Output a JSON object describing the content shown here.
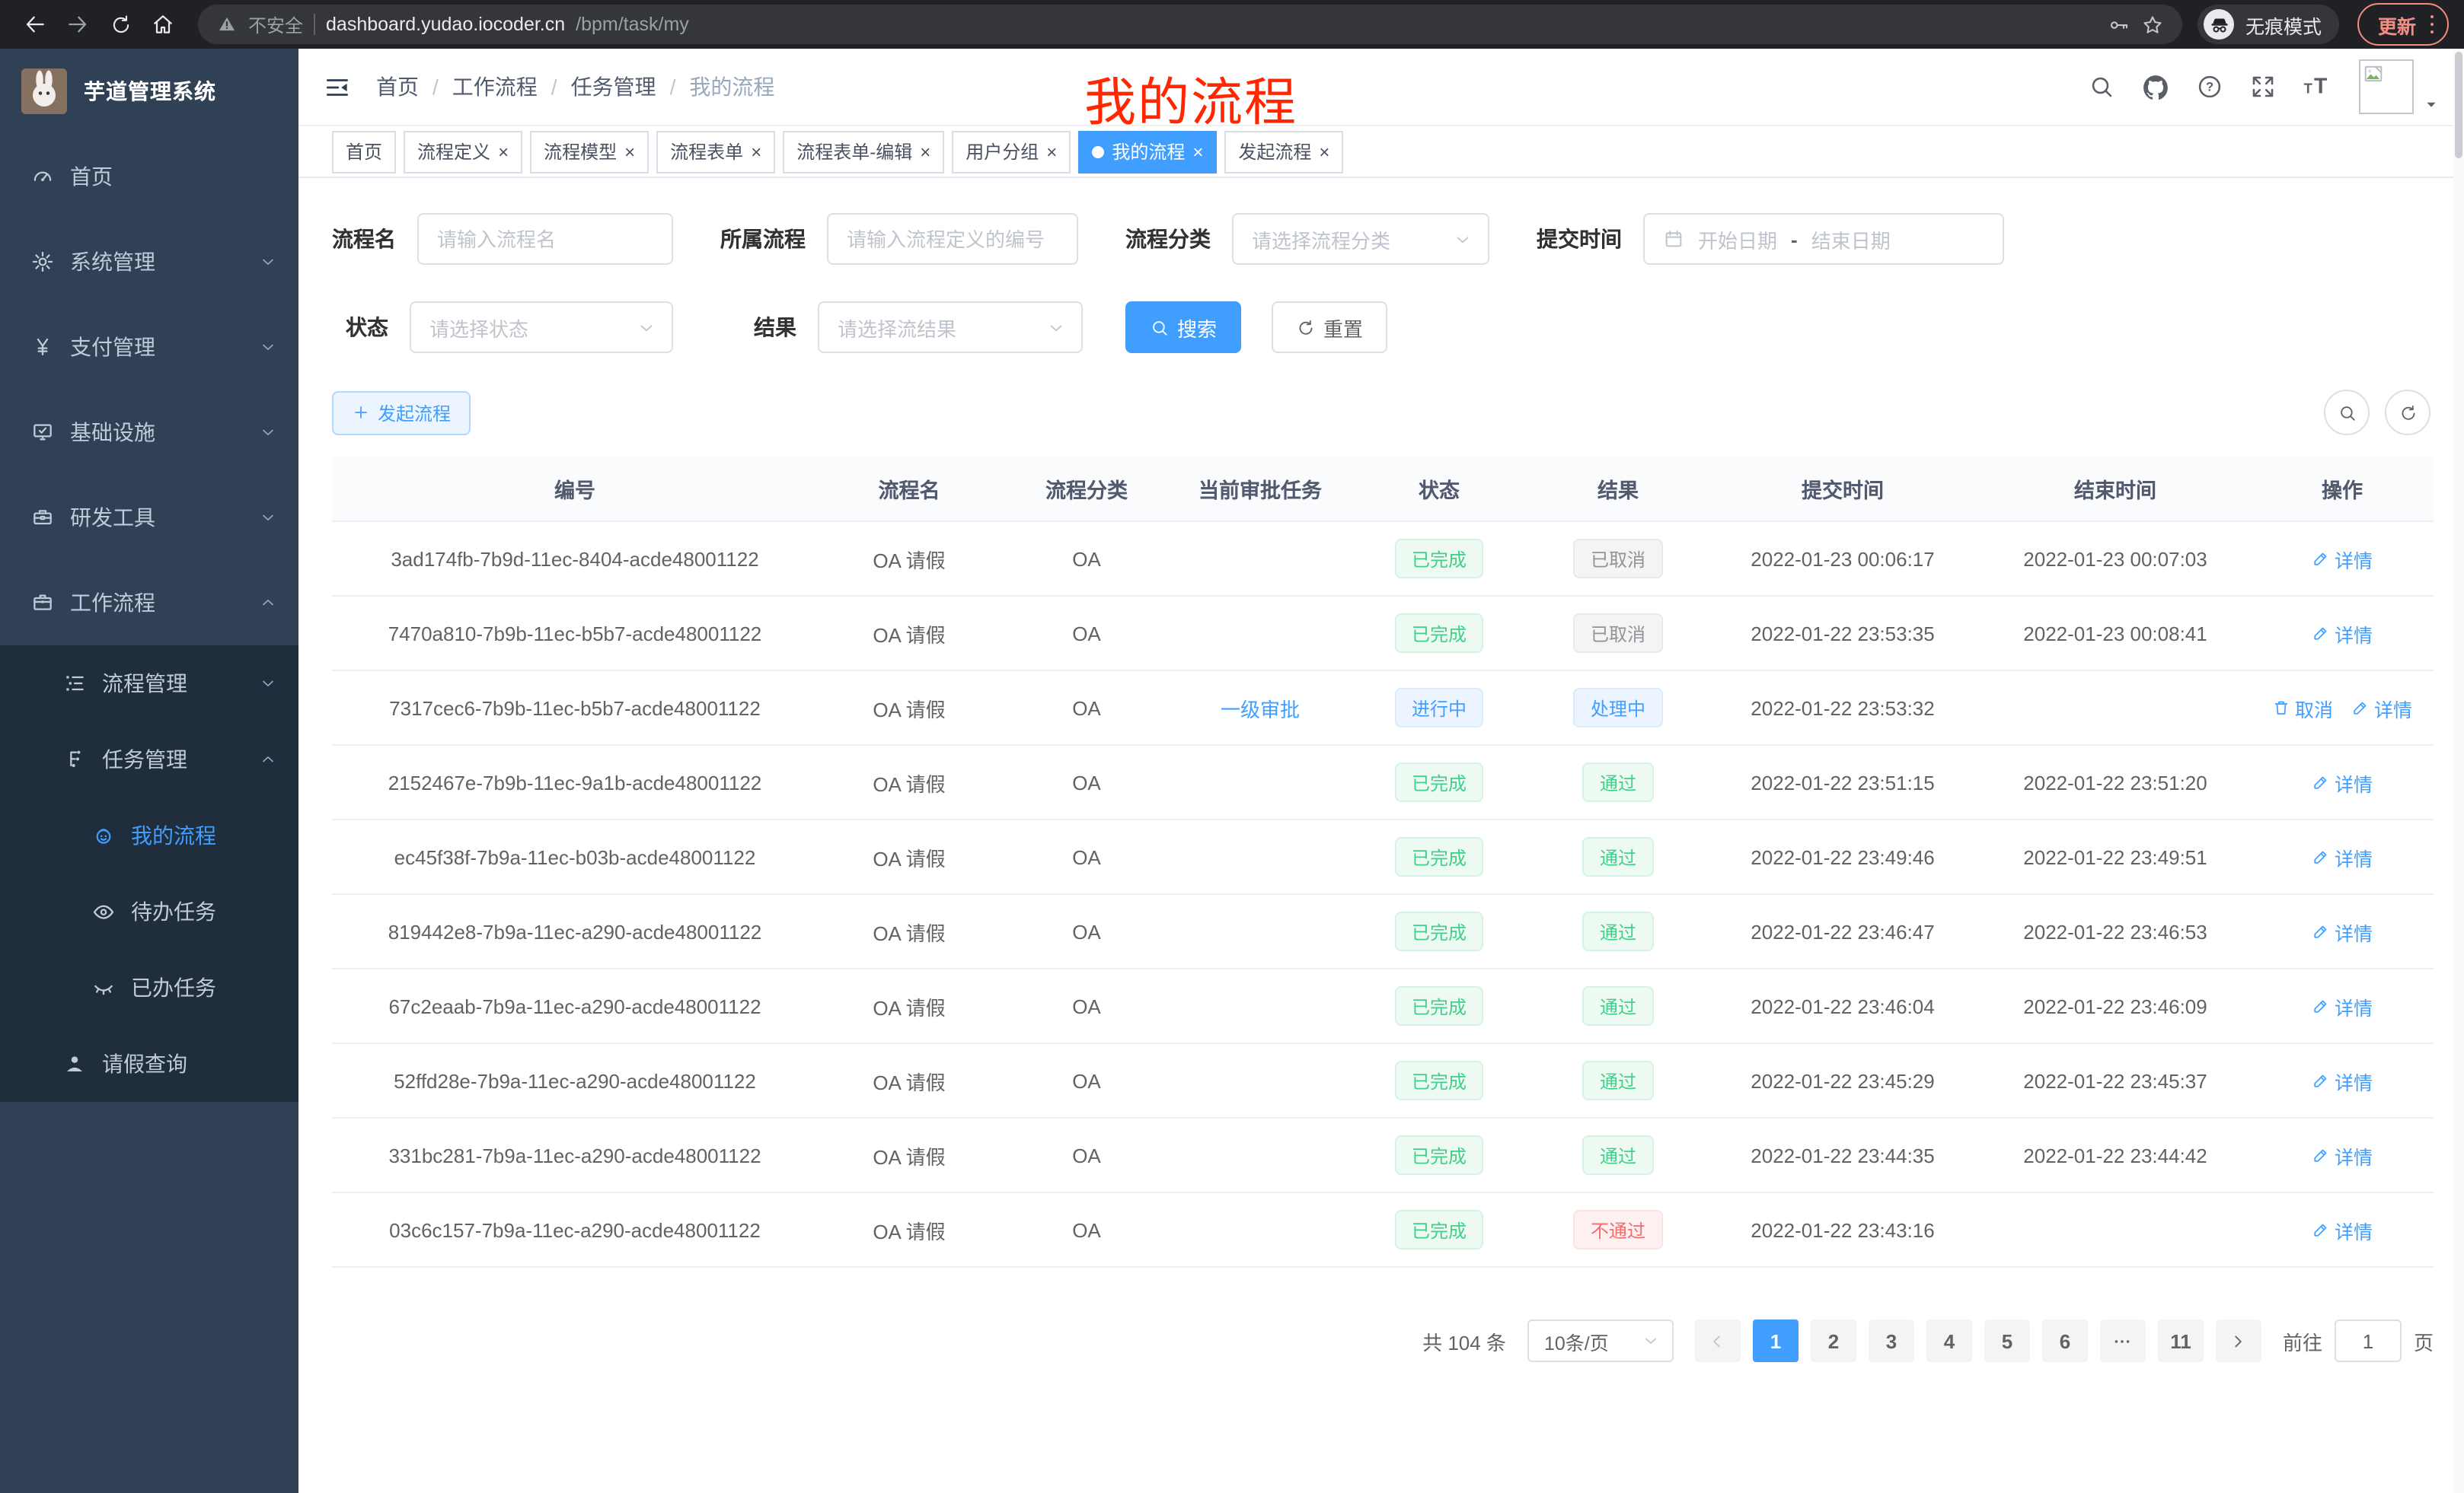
{
  "browser": {
    "insecure_label": "不安全",
    "url_host": "dashboard.yudao.iocoder.cn",
    "url_path": "/bpm/task/my",
    "incognito_label": "无痕模式",
    "update_label": "更新"
  },
  "sidebar": {
    "title": "芋道管理系统",
    "items": [
      {
        "label": "首页",
        "icon": "gauge",
        "level": 1,
        "chevron": "",
        "grouped": false,
        "active": false
      },
      {
        "label": "系统管理",
        "icon": "gear",
        "level": 1,
        "chevron": "down",
        "grouped": false,
        "active": false
      },
      {
        "label": "支付管理",
        "icon": "yen",
        "level": 1,
        "chevron": "down",
        "grouped": false,
        "active": false
      },
      {
        "label": "基础设施",
        "icon": "monitor",
        "level": 1,
        "chevron": "down",
        "grouped": false,
        "active": false
      },
      {
        "label": "研发工具",
        "icon": "toolbox",
        "level": 1,
        "chevron": "down",
        "grouped": false,
        "active": false
      },
      {
        "label": "工作流程",
        "icon": "briefcase",
        "level": 1,
        "chevron": "up",
        "grouped": false,
        "active": false
      },
      {
        "label": "流程管理",
        "icon": "list",
        "level": 2,
        "chevron": "down",
        "grouped": true,
        "active": false
      },
      {
        "label": "任务管理",
        "icon": "flow",
        "level": 2,
        "chevron": "up",
        "grouped": true,
        "active": false
      },
      {
        "label": "我的流程",
        "icon": "robot",
        "level": 3,
        "chevron": "",
        "grouped": true,
        "active": true
      },
      {
        "label": "待办任务",
        "icon": "eye",
        "level": 3,
        "chevron": "",
        "grouped": true,
        "active": false
      },
      {
        "label": "已办任务",
        "icon": "eyeclosed",
        "level": 3,
        "chevron": "",
        "grouped": true,
        "active": false
      },
      {
        "label": "请假查询",
        "icon": "user",
        "level": 2,
        "chevron": "",
        "grouped": true,
        "active": false
      }
    ]
  },
  "header": {
    "breadcrumb": [
      "首页",
      "工作流程",
      "任务管理",
      "我的流程"
    ],
    "annotation_title": "我的流程"
  },
  "tabs": [
    {
      "label": "首页",
      "closable": false,
      "active": false
    },
    {
      "label": "流程定义",
      "closable": true,
      "active": false
    },
    {
      "label": "流程模型",
      "closable": true,
      "active": false
    },
    {
      "label": "流程表单",
      "closable": true,
      "active": false
    },
    {
      "label": "流程表单-编辑",
      "closable": true,
      "active": false
    },
    {
      "label": "用户分组",
      "closable": true,
      "active": false
    },
    {
      "label": "我的流程",
      "closable": true,
      "active": true
    },
    {
      "label": "发起流程",
      "closable": true,
      "active": false
    }
  ],
  "filters": {
    "process_name": {
      "label": "流程名",
      "placeholder": "请输入流程名"
    },
    "parent_process": {
      "label": "所属流程",
      "placeholder": "请输入流程定义的编号"
    },
    "category": {
      "label": "流程分类",
      "placeholder": "请选择流程分类"
    },
    "submit_time": {
      "label": "提交时间",
      "start_placeholder": "开始日期",
      "separator": "-",
      "end_placeholder": "结束日期"
    },
    "status": {
      "label": "状态",
      "placeholder": "请选择状态"
    },
    "result": {
      "label": "结果",
      "placeholder": "请选择流结果"
    },
    "search_label": "搜索",
    "reset_label": "重置"
  },
  "toolbar": {
    "start_process_label": "发起流程"
  },
  "table": {
    "columns": [
      "编号",
      "流程名",
      "流程分类",
      "当前审批任务",
      "状态",
      "结果",
      "提交时间",
      "结束时间",
      "操作"
    ],
    "rows": [
      {
        "id": "3ad174fb-7b9d-11ec-8404-acde48001122",
        "name": "OA 请假",
        "category": "OA",
        "current_task": "",
        "status": {
          "text": "已完成",
          "type": "success"
        },
        "result": {
          "text": "已取消",
          "type": "info"
        },
        "submit_time": "2022-01-23 00:06:17",
        "end_time": "2022-01-23 00:07:03",
        "actions": [
          {
            "label": "详情",
            "icon": "edit"
          }
        ]
      },
      {
        "id": "7470a810-7b9b-11ec-b5b7-acde48001122",
        "name": "OA 请假",
        "category": "OA",
        "current_task": "",
        "status": {
          "text": "已完成",
          "type": "success"
        },
        "result": {
          "text": "已取消",
          "type": "info"
        },
        "submit_time": "2022-01-22 23:53:35",
        "end_time": "2022-01-23 00:08:41",
        "actions": [
          {
            "label": "详情",
            "icon": "edit"
          }
        ]
      },
      {
        "id": "7317cec6-7b9b-11ec-b5b7-acde48001122",
        "name": "OA 请假",
        "category": "OA",
        "current_task": "一级审批",
        "status": {
          "text": "进行中",
          "type": "primary"
        },
        "result": {
          "text": "处理中",
          "type": "primary"
        },
        "submit_time": "2022-01-22 23:53:32",
        "end_time": "",
        "actions": [
          {
            "label": "取消",
            "icon": "trash"
          },
          {
            "label": "详情",
            "icon": "edit"
          }
        ]
      },
      {
        "id": "2152467e-7b9b-11ec-9a1b-acde48001122",
        "name": "OA 请假",
        "category": "OA",
        "current_task": "",
        "status": {
          "text": "已完成",
          "type": "success"
        },
        "result": {
          "text": "通过",
          "type": "success"
        },
        "submit_time": "2022-01-22 23:51:15",
        "end_time": "2022-01-22 23:51:20",
        "actions": [
          {
            "label": "详情",
            "icon": "edit"
          }
        ]
      },
      {
        "id": "ec45f38f-7b9a-11ec-b03b-acde48001122",
        "name": "OA 请假",
        "category": "OA",
        "current_task": "",
        "status": {
          "text": "已完成",
          "type": "success"
        },
        "result": {
          "text": "通过",
          "type": "success"
        },
        "submit_time": "2022-01-22 23:49:46",
        "end_time": "2022-01-22 23:49:51",
        "actions": [
          {
            "label": "详情",
            "icon": "edit"
          }
        ]
      },
      {
        "id": "819442e8-7b9a-11ec-a290-acde48001122",
        "name": "OA 请假",
        "category": "OA",
        "current_task": "",
        "status": {
          "text": "已完成",
          "type": "success"
        },
        "result": {
          "text": "通过",
          "type": "success"
        },
        "submit_time": "2022-01-22 23:46:47",
        "end_time": "2022-01-22 23:46:53",
        "actions": [
          {
            "label": "详情",
            "icon": "edit"
          }
        ]
      },
      {
        "id": "67c2eaab-7b9a-11ec-a290-acde48001122",
        "name": "OA 请假",
        "category": "OA",
        "current_task": "",
        "status": {
          "text": "已完成",
          "type": "success"
        },
        "result": {
          "text": "通过",
          "type": "success"
        },
        "submit_time": "2022-01-22 23:46:04",
        "end_time": "2022-01-22 23:46:09",
        "actions": [
          {
            "label": "详情",
            "icon": "edit"
          }
        ]
      },
      {
        "id": "52ffd28e-7b9a-11ec-a290-acde48001122",
        "name": "OA 请假",
        "category": "OA",
        "current_task": "",
        "status": {
          "text": "已完成",
          "type": "success"
        },
        "result": {
          "text": "通过",
          "type": "success"
        },
        "submit_time": "2022-01-22 23:45:29",
        "end_time": "2022-01-22 23:45:37",
        "actions": [
          {
            "label": "详情",
            "icon": "edit"
          }
        ]
      },
      {
        "id": "331bc281-7b9a-11ec-a290-acde48001122",
        "name": "OA 请假",
        "category": "OA",
        "current_task": "",
        "status": {
          "text": "已完成",
          "type": "success"
        },
        "result": {
          "text": "通过",
          "type": "success"
        },
        "submit_time": "2022-01-22 23:44:35",
        "end_time": "2022-01-22 23:44:42",
        "actions": [
          {
            "label": "详情",
            "icon": "edit"
          }
        ]
      },
      {
        "id": "03c6c157-7b9a-11ec-a290-acde48001122",
        "name": "OA 请假",
        "category": "OA",
        "current_task": "",
        "status": {
          "text": "已完成",
          "type": "success"
        },
        "result": {
          "text": "不通过",
          "type": "danger"
        },
        "submit_time": "2022-01-22 23:43:16",
        "end_time": "",
        "actions": [
          {
            "label": "详情",
            "icon": "edit"
          }
        ]
      }
    ]
  },
  "pagination": {
    "total": "共 104 条",
    "page_size": "10条/页",
    "pages": [
      "1",
      "2",
      "3",
      "4",
      "5",
      "6",
      "...",
      "11"
    ],
    "active_page": "1",
    "goto_label": "前往",
    "goto_value": "1",
    "goto_suffix": "页"
  },
  "colors": {
    "primary": "#409eff",
    "success": "#43cf8a",
    "info": "#909399",
    "danger": "#f56c6c",
    "sidebar_bg": "#304156",
    "submenu_bg": "#1f2d3d",
    "annotation_red": "#ff2600",
    "chrome_bg": "#202124",
    "update_accent": "#f28b82"
  }
}
